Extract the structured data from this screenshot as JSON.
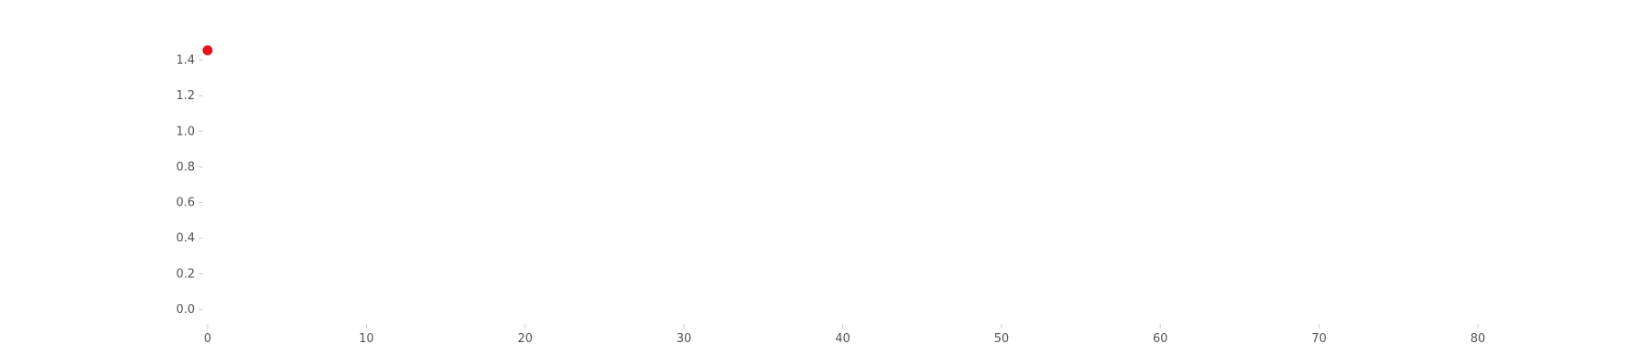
{
  "chart_data": {
    "type": "scatter",
    "title": "",
    "xlabel": "",
    "ylabel": "",
    "xlim": [
      0,
      82
    ],
    "ylim": [
      0,
      1.5
    ],
    "x_ticks": [
      "0",
      "10",
      "20",
      "30",
      "40",
      "50",
      "60",
      "70",
      "80"
    ],
    "y_ticks": [
      "0.0",
      "0.2",
      "0.4",
      "0.6",
      "0.8",
      "1.0",
      "1.2",
      "1.4"
    ],
    "grid": false,
    "legend": "none",
    "series": [
      {
        "color": "#e8141c",
        "points": [
          {
            "x": 0,
            "y": 1.45
          }
        ]
      }
    ]
  }
}
